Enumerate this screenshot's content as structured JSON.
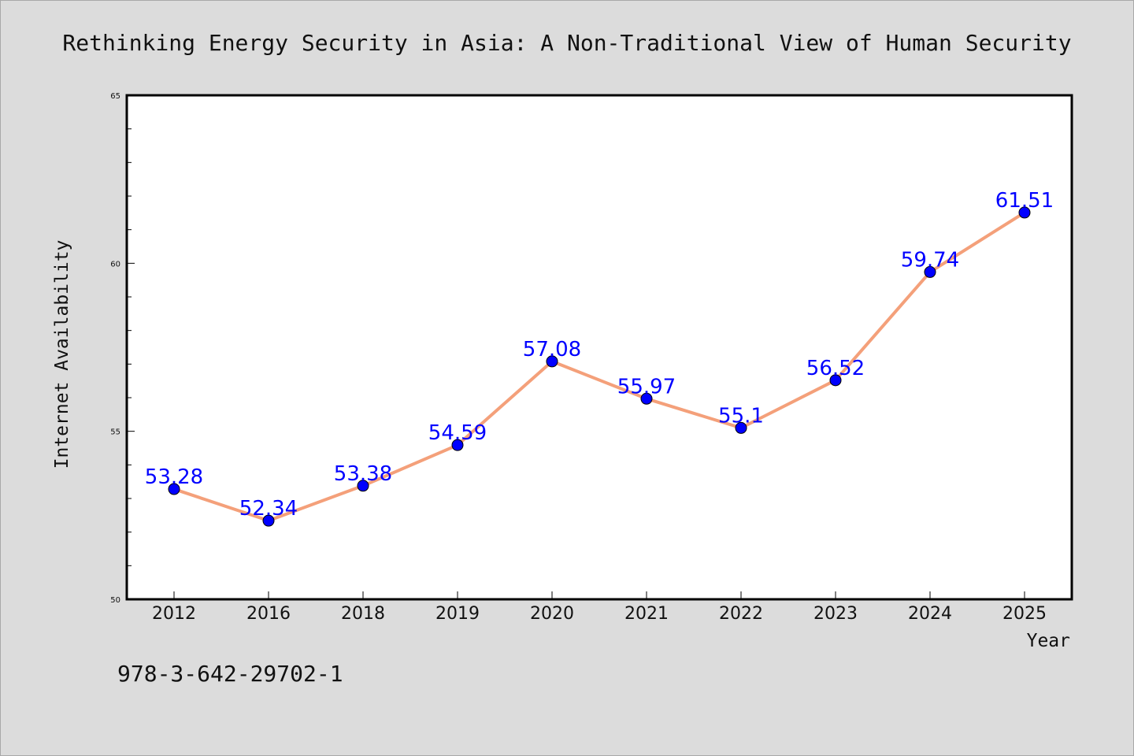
{
  "chart_data": {
    "type": "line",
    "title": "Rethinking Energy Security in Asia: A Non-Traditional View of Human Security",
    "xlabel": "Year",
    "ylabel": "Internet Availability",
    "categories": [
      "2012",
      "2016",
      "2018",
      "2019",
      "2020",
      "2021",
      "2022",
      "2023",
      "2024",
      "2025"
    ],
    "series": [
      {
        "values": [
          53.28,
          52.34,
          53.38,
          54.59,
          57.08,
          55.97,
          55.1,
          56.52,
          59.74,
          61.51
        ],
        "labels": [
          "53.28",
          "52.34",
          "53.38",
          "54.59",
          "57.08",
          "55.97",
          "55.1",
          "56.52",
          "59.74",
          "61.51"
        ],
        "line_color": "#f4a07a",
        "marker_color": "#0000ff",
        "label_color": "#0000ff"
      }
    ],
    "ylim": [
      50,
      65
    ],
    "yticks": [
      50,
      55,
      60,
      65
    ],
    "y_minor_step": 1,
    "grid": false,
    "legend": "none"
  },
  "footer": {
    "isbn": "978-3-642-29702-1"
  }
}
